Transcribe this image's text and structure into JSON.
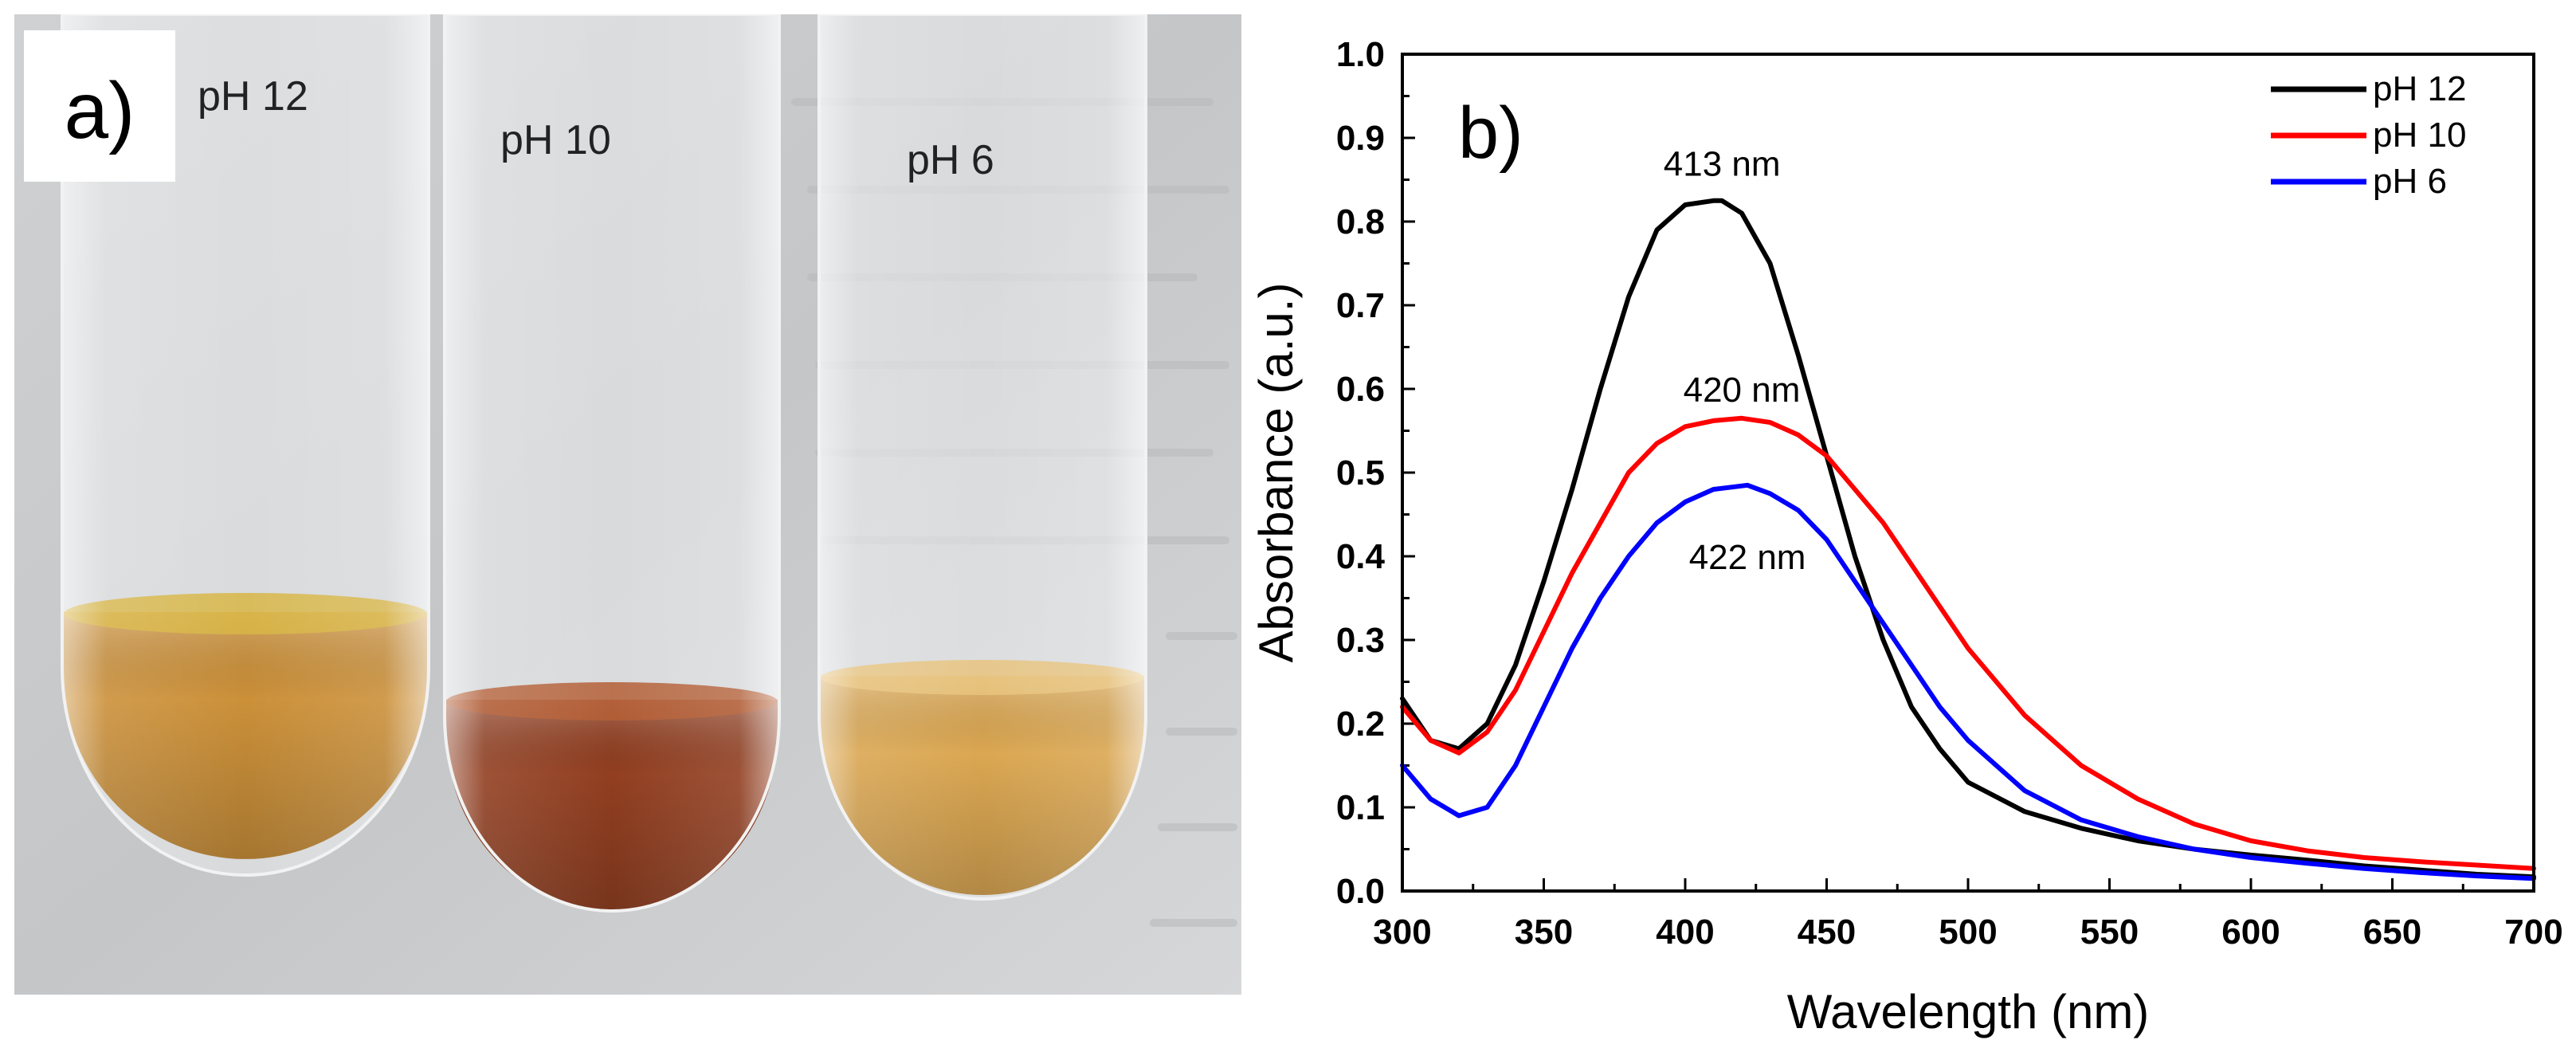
{
  "panel_a": {
    "label": "a)",
    "tubes": [
      {
        "label": "pH 12",
        "solution_color": "#c98a2e"
      },
      {
        "label": "pH 10",
        "solution_color": "#8c3414"
      },
      {
        "label": "pH 6",
        "solution_color": "#d9a248"
      }
    ]
  },
  "chart_data": {
    "type": "line",
    "panel_label": "b)",
    "xlabel": "Wavelength (nm)",
    "ylabel": "Absorbance (a.u.)",
    "xlim": [
      300,
      700
    ],
    "ylim": [
      0.0,
      1.0
    ],
    "xticks": [
      300,
      350,
      400,
      450,
      500,
      550,
      600,
      650,
      700
    ],
    "yticks": [
      0.0,
      0.1,
      0.2,
      0.3,
      0.4,
      0.5,
      0.6,
      0.7,
      0.8,
      0.9,
      1.0
    ],
    "ytick_labels": [
      "0.0",
      "0.1",
      "0.2",
      "0.3",
      "0.4",
      "0.5",
      "0.6",
      "0.7",
      "0.8",
      "0.9",
      "1.0"
    ],
    "legend_position": "top-right",
    "series": [
      {
        "name": "pH 12",
        "color": "#000000",
        "x": [
          300,
          310,
          320,
          330,
          340,
          350,
          360,
          370,
          380,
          390,
          400,
          410,
          413,
          420,
          430,
          440,
          450,
          460,
          470,
          480,
          490,
          500,
          520,
          540,
          560,
          580,
          600,
          620,
          640,
          660,
          680,
          700
        ],
        "y": [
          0.23,
          0.18,
          0.17,
          0.2,
          0.27,
          0.37,
          0.48,
          0.6,
          0.71,
          0.79,
          0.82,
          0.825,
          0.825,
          0.81,
          0.75,
          0.64,
          0.52,
          0.4,
          0.3,
          0.22,
          0.17,
          0.13,
          0.095,
          0.075,
          0.06,
          0.05,
          0.043,
          0.037,
          0.03,
          0.025,
          0.02,
          0.017
        ]
      },
      {
        "name": "pH 10",
        "color": "#ff0000",
        "x": [
          300,
          310,
          320,
          330,
          340,
          350,
          360,
          370,
          380,
          390,
          400,
          410,
          420,
          430,
          440,
          450,
          460,
          470,
          480,
          490,
          500,
          520,
          540,
          560,
          580,
          600,
          620,
          640,
          660,
          680,
          700
        ],
        "y": [
          0.22,
          0.18,
          0.165,
          0.19,
          0.24,
          0.31,
          0.38,
          0.44,
          0.5,
          0.535,
          0.555,
          0.562,
          0.565,
          0.56,
          0.545,
          0.52,
          0.48,
          0.44,
          0.39,
          0.34,
          0.29,
          0.21,
          0.15,
          0.11,
          0.08,
          0.06,
          0.048,
          0.04,
          0.035,
          0.031,
          0.027
        ]
      },
      {
        "name": "pH 6",
        "color": "#0000ff",
        "x": [
          300,
          310,
          320,
          330,
          340,
          350,
          360,
          370,
          380,
          390,
          400,
          410,
          422,
          430,
          440,
          450,
          460,
          470,
          480,
          490,
          500,
          520,
          540,
          560,
          580,
          600,
          620,
          640,
          660,
          680,
          700
        ],
        "y": [
          0.15,
          0.11,
          0.09,
          0.1,
          0.15,
          0.22,
          0.29,
          0.35,
          0.4,
          0.44,
          0.465,
          0.48,
          0.485,
          0.475,
          0.455,
          0.42,
          0.37,
          0.32,
          0.27,
          0.22,
          0.18,
          0.12,
          0.085,
          0.065,
          0.05,
          0.04,
          0.033,
          0.027,
          0.022,
          0.018,
          0.015
        ]
      }
    ],
    "annotations": [
      {
        "text": "413 nm",
        "x": 413,
        "y": 0.855
      },
      {
        "text": "420 nm",
        "x": 420,
        "y": 0.585
      },
      {
        "text": "422 nm",
        "x": 422,
        "y": 0.385
      }
    ]
  }
}
